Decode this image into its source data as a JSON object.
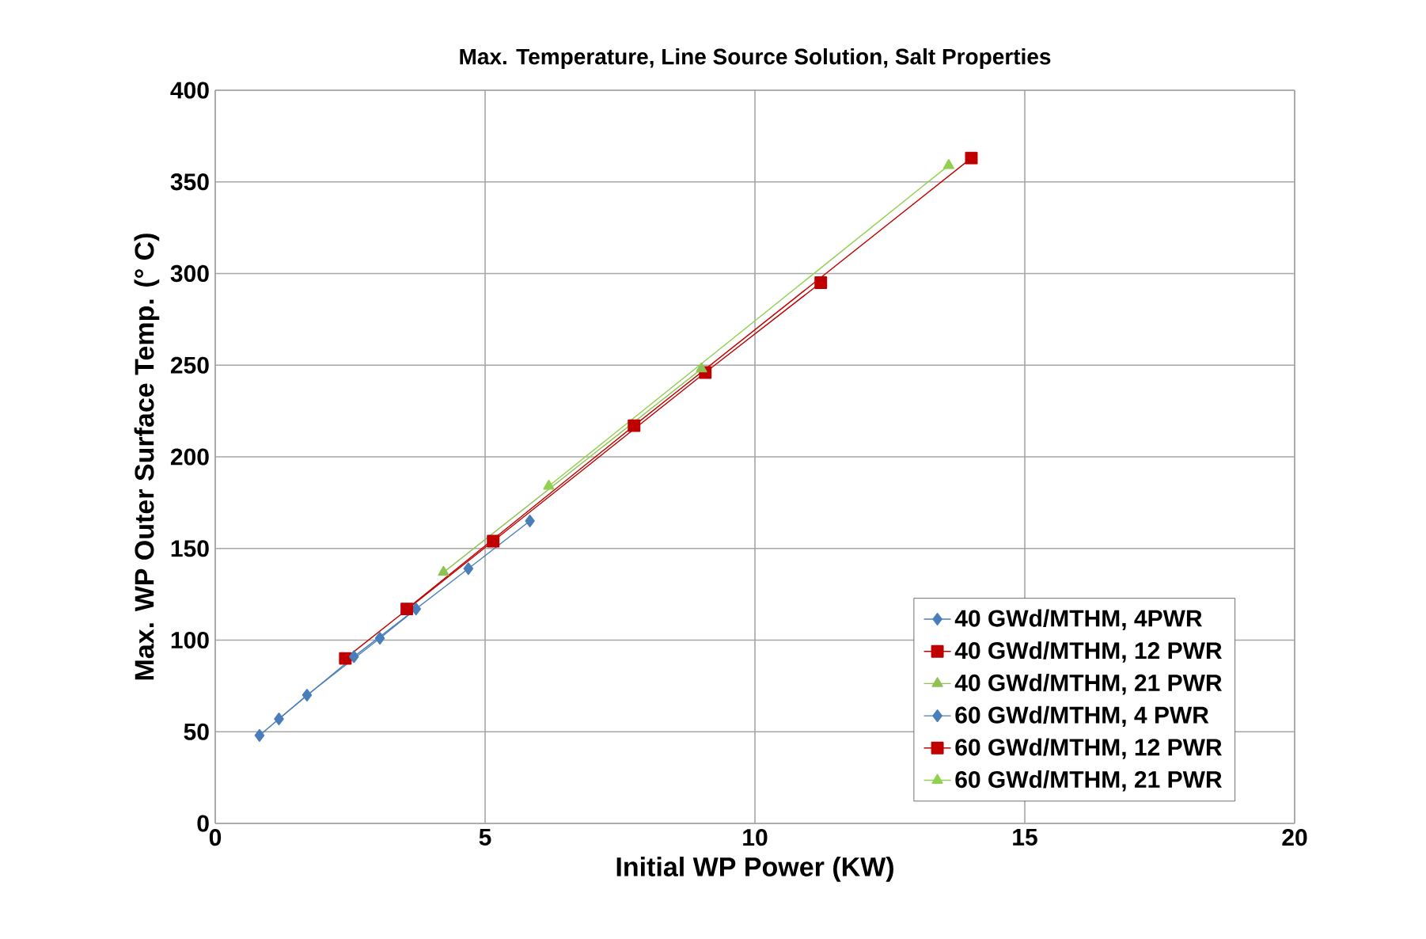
{
  "chart_data": {
    "type": "line",
    "title": "Max. Temperature, Line Source Solution, Salt Properties",
    "xlabel": "Initial WP Power (KW)",
    "ylabel": "Max. WP Outer Surface Temp. (° C)",
    "xlim": [
      0,
      20
    ],
    "xticks": [
      0,
      5,
      10,
      15,
      20
    ],
    "ylim": [
      0,
      400
    ],
    "yticks": [
      0,
      50,
      100,
      150,
      200,
      250,
      300,
      350,
      400
    ],
    "grid": true,
    "legend": "bottom right",
    "series": [
      {
        "name": "40 GWd/MTHM, 4PWR",
        "color": "#4a7ebb",
        "marker": "diamond",
        "x": [
          0.82,
          1.7,
          3.05,
          3.72
        ],
        "values": [
          48,
          70,
          101,
          117
        ]
      },
      {
        "name": "40 GWd/MTHM, 12 PWR",
        "color": "#c00000",
        "marker": "square",
        "x": [
          2.41,
          5.15,
          9.08,
          11.22
        ],
        "values": [
          90,
          154,
          246,
          295
        ]
      },
      {
        "name": "40 GWd/MTHM, 21 PWR",
        "color": "#8fc255",
        "marker": "triangle",
        "x": [
          4.23,
          9.01
        ],
        "values": [
          137,
          248
        ]
      },
      {
        "name": "60 GWd/MTHM, 4 PWR",
        "color": "#4a7ebb",
        "marker": "diamond",
        "x": [
          1.18,
          2.57,
          4.69,
          5.83
        ],
        "values": [
          57,
          91,
          139,
          165
        ]
      },
      {
        "name": "60 GWd/MTHM, 12 PWR",
        "color": "#c00000",
        "marker": "square",
        "x": [
          3.55,
          7.76,
          14.01
        ],
        "values": [
          117,
          217,
          363
        ]
      },
      {
        "name": "60 GWd/MTHM, 21 PWR",
        "color": "#92d050",
        "marker": "triangle",
        "x": [
          6.18,
          13.59
        ],
        "values": [
          184,
          359
        ]
      }
    ]
  }
}
